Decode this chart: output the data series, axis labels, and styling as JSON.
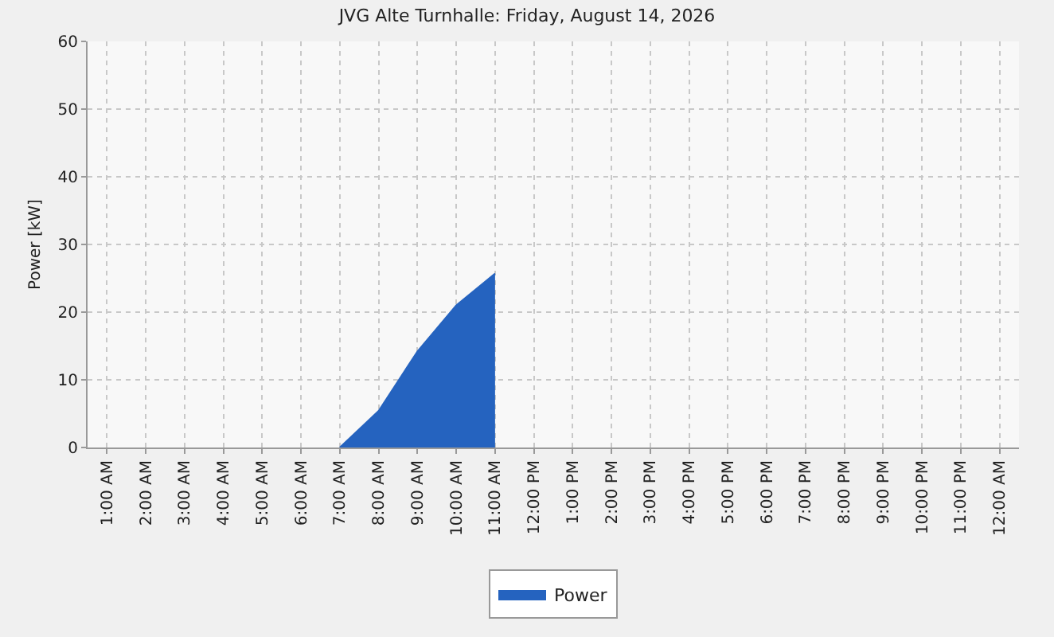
{
  "chart_data": {
    "type": "area",
    "title": "JVG Alte Turnhalle: Friday, August 14, 2026",
    "ylabel": "Power [kW]",
    "categories": [
      "1:00 AM",
      "2:00 AM",
      "3:00 AM",
      "4:00 AM",
      "5:00 AM",
      "6:00 AM",
      "7:00 AM",
      "8:00 AM",
      "9:00 AM",
      "10:00 AM",
      "11:00 AM",
      "12:00 PM",
      "1:00 PM",
      "2:00 PM",
      "3:00 PM",
      "4:00 PM",
      "5:00 PM",
      "6:00 PM",
      "7:00 PM",
      "8:00 PM",
      "9:00 PM",
      "10:00 PM",
      "11:00 PM",
      "12:00 AM"
    ],
    "series": [
      {
        "name": "Power",
        "color": "#2563bf",
        "values": [
          null,
          null,
          null,
          null,
          null,
          null,
          0,
          5.4,
          14.2,
          21,
          25.7,
          null,
          null,
          null,
          null,
          null,
          null,
          null,
          null,
          null,
          null,
          null,
          null,
          null
        ]
      }
    ],
    "ylim": [
      0,
      60
    ],
    "yticks": [
      0,
      10,
      20,
      30,
      40,
      50,
      60
    ],
    "grid": true,
    "legend": "bottom"
  }
}
